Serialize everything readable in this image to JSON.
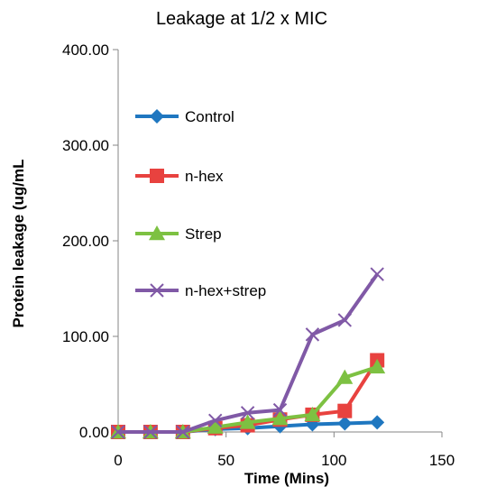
{
  "chart_data": {
    "type": "line",
    "title": "Leakage at 1/2 x MIC",
    "xlabel": "Time (Mins)",
    "ylabel": "Protein leakage (ug/mL",
    "xlim": [
      0,
      150
    ],
    "ylim": [
      0,
      400
    ],
    "x_ticks": [
      "0",
      "50",
      "100",
      "150"
    ],
    "y_ticks": [
      "0.00",
      "100.00",
      "200.00",
      "300.00",
      "400.00"
    ],
    "grid": false,
    "legend": "inside-left",
    "x": [
      0,
      15,
      30,
      45,
      60,
      75,
      90,
      105,
      120
    ],
    "series": [
      {
        "name": "Control",
        "color": "#1f77c0",
        "marker": "diamond",
        "values": [
          0,
          0,
          0,
          3,
          4,
          6,
          8,
          9,
          10
        ]
      },
      {
        "name": "n-hex",
        "color": "#e8423f",
        "marker": "square",
        "values": [
          0,
          0,
          0,
          4,
          7,
          13,
          18,
          22,
          75
        ]
      },
      {
        "name": "Strep",
        "color": "#7dc142",
        "marker": "triangle",
        "values": [
          0,
          0,
          0,
          5,
          10,
          14,
          18,
          57,
          68
        ]
      },
      {
        "name": "n-hex+strep",
        "color": "#8059a6",
        "marker": "x",
        "values": [
          0,
          0,
          0,
          12,
          20,
          23,
          102,
          117,
          165
        ]
      }
    ]
  }
}
